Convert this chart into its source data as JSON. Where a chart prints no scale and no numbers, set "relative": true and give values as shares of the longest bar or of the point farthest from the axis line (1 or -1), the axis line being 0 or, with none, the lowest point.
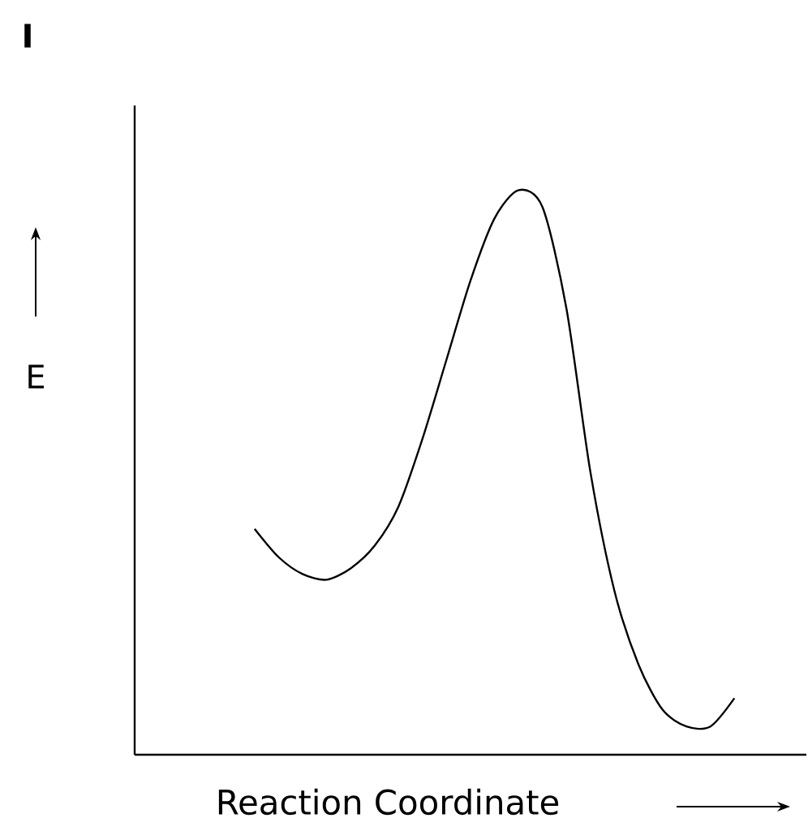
{
  "chart_data": {
    "type": "line",
    "title": "I",
    "xlabel": "Reaction Coordinate",
    "ylabel": "E",
    "relative": true,
    "color": "#000000",
    "categories": [
      null,
      null,
      null,
      null,
      null,
      null,
      null,
      null,
      null,
      null,
      null,
      null,
      null,
      null,
      null,
      null,
      null,
      null,
      null,
      null,
      null,
      null,
      null,
      null,
      null,
      null,
      null,
      null,
      null
    ],
    "values": [
      null,
      null,
      null,
      null,
      null,
      0.4,
      0.35,
      0.32,
      0.31,
      0.33,
      0.37,
      0.44,
      0.56,
      0.7,
      0.84,
      0.95,
      1,
      0.97,
      0.79,
      0.5,
      0.29,
      0.16,
      0.08,
      0.05,
      0.05,
      0.1,
      null,
      null,
      null
    ]
  }
}
